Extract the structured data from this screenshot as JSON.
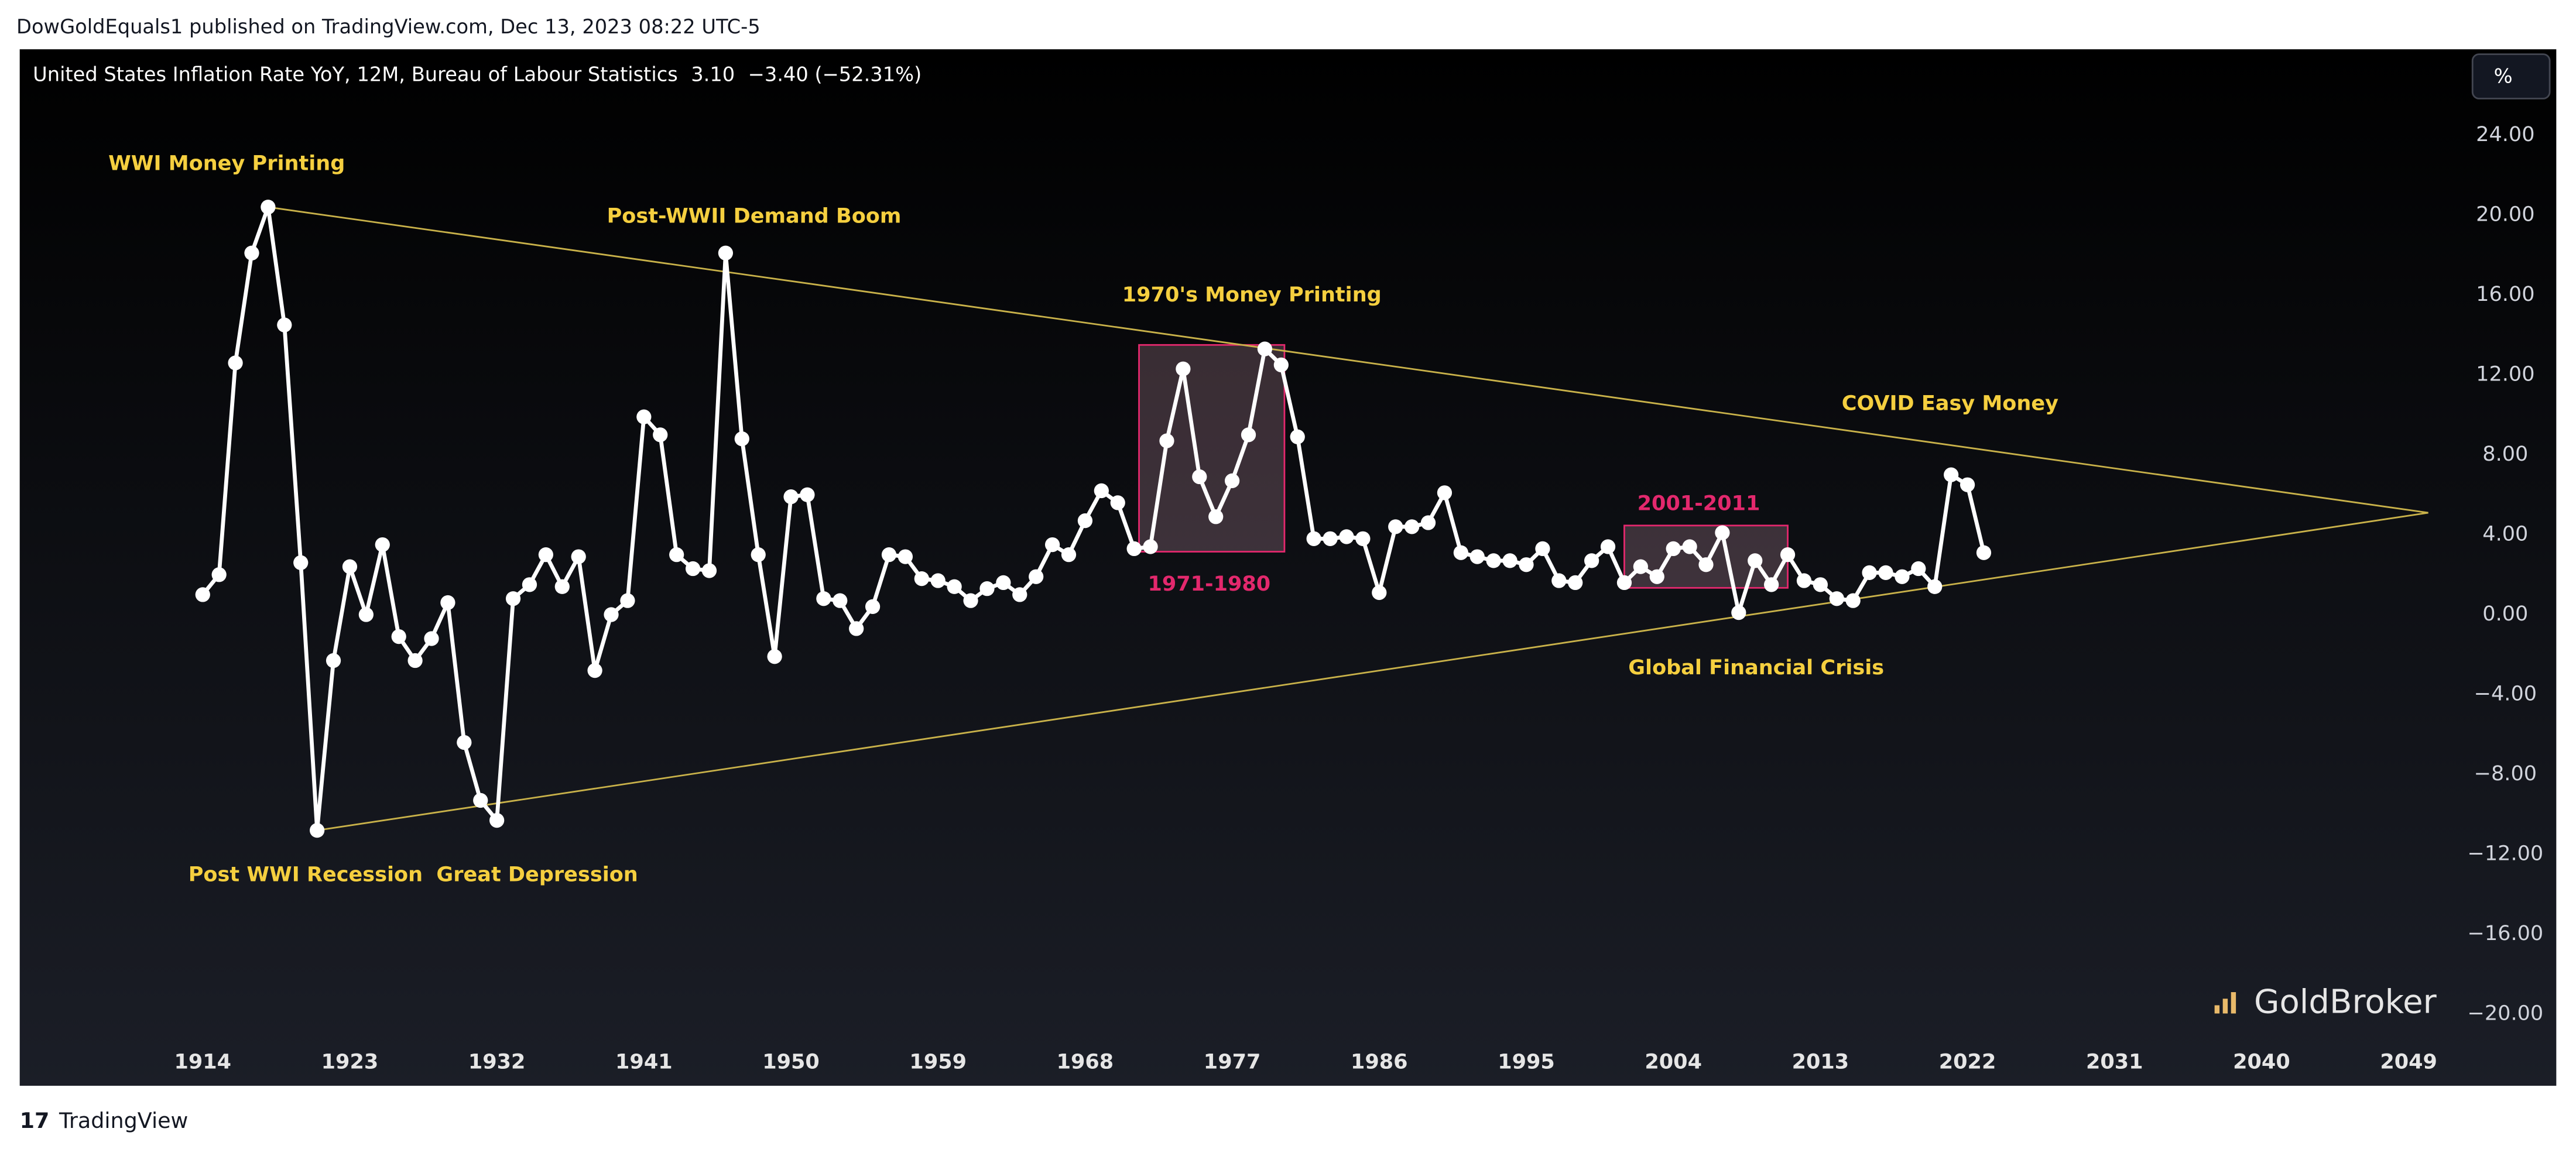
{
  "header": "DowGoldEquals1 published on TradingView.com, Dec 13, 2023 08:22 UTC-5",
  "footer": "TradingView",
  "watermark": "GoldBroker",
  "chart_data": {
    "type": "line",
    "last_value_label": "3.10",
    "change_label": "−3.40 (−52.31%)",
    "unit_button": "%",
    "x": [
      1914,
      1915,
      1916,
      1917,
      1918,
      1919,
      1920,
      1921,
      1922,
      1923,
      1924,
      1925,
      1926,
      1927,
      1928,
      1929,
      1930,
      1931,
      1932,
      1933,
      1934,
      1935,
      1936,
      1937,
      1938,
      1939,
      1940,
      1941,
      1942,
      1943,
      1944,
      1945,
      1946,
      1947,
      1948,
      1949,
      1950,
      1951,
      1952,
      1953,
      1954,
      1955,
      1956,
      1957,
      1958,
      1959,
      1960,
      1961,
      1962,
      1963,
      1964,
      1965,
      1966,
      1967,
      1968,
      1969,
      1970,
      1971,
      1972,
      1973,
      1974,
      1975,
      1976,
      1977,
      1978,
      1979,
      1980,
      1981,
      1982,
      1983,
      1984,
      1985,
      1986,
      1987,
      1988,
      1989,
      1990,
      1991,
      1992,
      1993,
      1994,
      1995,
      1996,
      1997,
      1998,
      1999,
      2000,
      2001,
      2002,
      2003,
      2004,
      2005,
      2006,
      2007,
      2008,
      2009,
      2010,
      2011,
      2012,
      2013,
      2014,
      2015,
      2016,
      2017,
      2018,
      2019,
      2020,
      2021,
      2022,
      2023
    ],
    "series": [
      {
        "name": "United States Inflation Rate YoY, 12M, Bureau of Labour Statistics",
        "color": "#ffffff",
        "values": [
          1.0,
          2.0,
          12.6,
          18.1,
          20.4,
          14.5,
          2.6,
          -10.8,
          -2.3,
          2.4,
          0.0,
          3.5,
          -1.1,
          -2.3,
          -1.2,
          0.6,
          -6.4,
          -9.3,
          -10.3,
          0.8,
          1.5,
          3.0,
          1.4,
          2.9,
          -2.8,
          0.0,
          0.7,
          9.9,
          9.0,
          3.0,
          2.3,
          2.2,
          18.1,
          8.8,
          3.0,
          -2.1,
          5.9,
          6.0,
          0.8,
          0.7,
          -0.7,
          0.4,
          3.0,
          2.9,
          1.8,
          1.7,
          1.4,
          0.7,
          1.3,
          1.6,
          1.0,
          1.9,
          3.5,
          3.0,
          4.7,
          6.2,
          5.6,
          3.3,
          3.4,
          8.7,
          12.3,
          6.9,
          4.9,
          6.7,
          9.0,
          13.3,
          12.5,
          8.9,
          3.8,
          3.8,
          3.9,
          3.8,
          1.1,
          4.4,
          4.4,
          4.6,
          6.1,
          3.1,
          2.9,
          2.7,
          2.7,
          2.5,
          3.3,
          1.7,
          1.6,
          2.7,
          3.4,
          1.6,
          2.4,
          1.9,
          3.3,
          3.4,
          2.5,
          4.1,
          0.1,
          2.7,
          1.5,
          3.0,
          1.7,
          1.5,
          0.8,
          0.7,
          2.1,
          2.1,
          1.9,
          2.3,
          1.4,
          7.0,
          6.5,
          3.1
        ]
      }
    ],
    "xlim": [
      1902.8,
      2051.4
    ],
    "ylim": [
      -21.2,
      28.3
    ],
    "xticks": [
      1914,
      1923,
      1932,
      1941,
      1950,
      1959,
      1968,
      1977,
      1986,
      1995,
      2004,
      2013,
      2022,
      2031,
      2040,
      2049
    ],
    "yticks": [
      {
        "value": 24,
        "label": "24.00"
      },
      {
        "value": 20,
        "label": "20.00"
      },
      {
        "value": 16,
        "label": "16.00"
      },
      {
        "value": 12,
        "label": "12.00"
      },
      {
        "value": 8,
        "label": "8.00"
      },
      {
        "value": 4,
        "label": "4.00"
      },
      {
        "value": 0,
        "label": "0.00"
      },
      {
        "value": -4,
        "label": "−4.00"
      },
      {
        "value": -8,
        "label": "−8.00"
      },
      {
        "value": -12,
        "label": "−12.00"
      },
      {
        "value": -16,
        "label": "−16.00"
      },
      {
        "value": -20,
        "label": "−20.00"
      }
    ],
    "grid": false,
    "trendlines": [
      {
        "x": [
          1918,
          2050.2
        ],
        "y": [
          20.4,
          5.1
        ],
        "color": "#c9b24a"
      },
      {
        "x": [
          1921,
          2050.2
        ],
        "y": [
          -10.8,
          5.1
        ],
        "color": "#c9b24a"
      }
    ],
    "boxes": [
      {
        "label": "1971-1980",
        "x": [
          1971.3,
          1980.2
        ],
        "y": [
          3.15,
          13.5
        ],
        "color": "#e3286d"
      },
      {
        "label": "2001-2011",
        "x": [
          2001,
          2011
        ],
        "y": [
          1.34,
          4.46
        ],
        "color": "#e3286d"
      }
    ],
    "annotations": [
      "WWI Money Printing",
      "Post-WWII Demand Boom",
      "1970's Money Printing",
      "COVID Easy Money",
      "Post WWI Recession",
      "Great Depression",
      "Global Financial Crisis"
    ]
  }
}
